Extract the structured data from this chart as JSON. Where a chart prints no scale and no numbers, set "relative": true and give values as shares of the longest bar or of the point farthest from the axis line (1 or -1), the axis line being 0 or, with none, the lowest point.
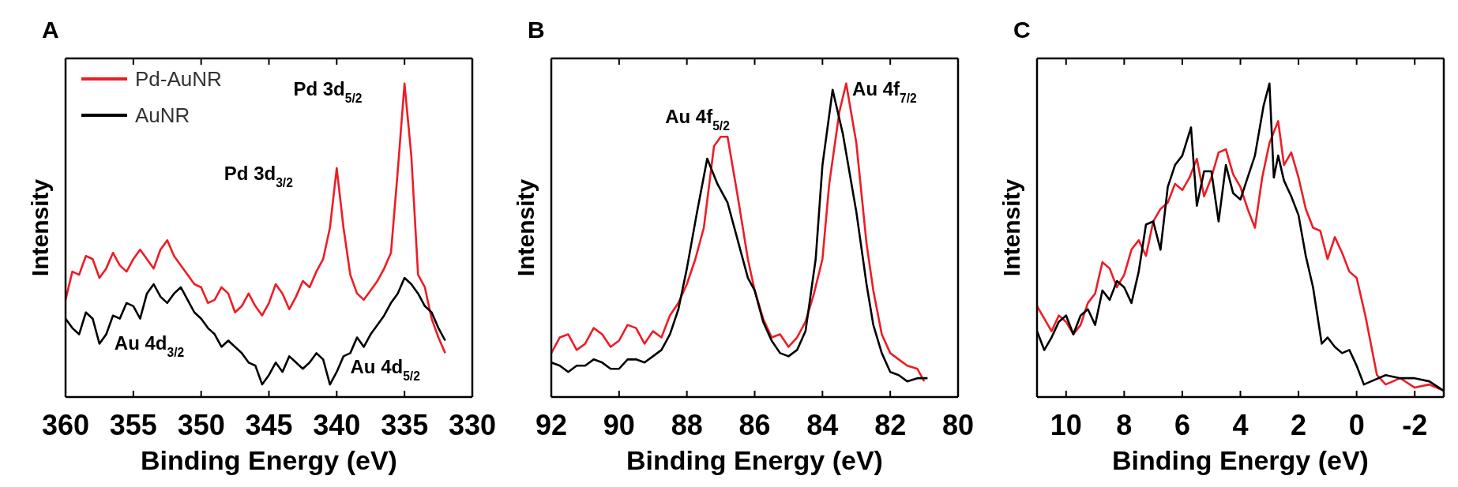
{
  "chart_data": [
    {
      "type": "line",
      "title": "A",
      "xlabel": "Binding Energy (eV)",
      "ylabel": "Intensity",
      "relative": true,
      "xlim": [
        360,
        330
      ],
      "xticks": [
        360,
        355,
        350,
        345,
        340,
        335,
        330
      ],
      "tick_labels": "x",
      "legend": "top left",
      "annotations": [
        "Pd 3d$_{5/2}$",
        "Pd 3d$_{3/2}$",
        "Au 4d$_{3/2}$",
        "Au 4d$_{5/2}$"
      ],
      "series": [
        {
          "name": "Pd-AuNR",
          "color": "#ee1c25",
          "x": [
            360,
            359.5,
            359,
            358.5,
            358,
            357.5,
            357,
            356.5,
            356,
            355.5,
            355,
            354.5,
            354,
            353.5,
            353,
            352.5,
            352,
            351.5,
            351,
            350.5,
            350,
            349.5,
            349,
            348.5,
            348,
            347.5,
            347,
            346.5,
            346,
            345.5,
            345,
            344.5,
            344,
            343.5,
            343,
            342.5,
            342,
            341.5,
            341,
            340.5,
            340,
            339.5,
            339,
            338.5,
            338,
            337.5,
            337,
            336.5,
            336,
            335.5,
            335,
            334.5,
            334,
            333.5,
            333,
            332.5,
            332
          ],
          "values": [
            0.31,
            0.4,
            0.39,
            0.45,
            0.44,
            0.38,
            0.41,
            0.46,
            0.42,
            0.4,
            0.44,
            0.47,
            0.44,
            0.41,
            0.47,
            0.5,
            0.45,
            0.42,
            0.39,
            0.36,
            0.35,
            0.3,
            0.31,
            0.35,
            0.33,
            0.27,
            0.29,
            0.33,
            0.29,
            0.26,
            0.3,
            0.36,
            0.33,
            0.28,
            0.32,
            0.37,
            0.35,
            0.4,
            0.44,
            0.54,
            0.73,
            0.54,
            0.39,
            0.33,
            0.31,
            0.34,
            0.37,
            0.41,
            0.46,
            0.72,
            1.0,
            0.77,
            0.39,
            0.35,
            0.25,
            0.19,
            0.14
          ]
        },
        {
          "name": "AuNR",
          "color": "#000000",
          "x": [
            360,
            359.5,
            359,
            358.5,
            358,
            357.5,
            357,
            356.5,
            356,
            355.5,
            355,
            354.5,
            354,
            353.5,
            353,
            352.5,
            352,
            351.5,
            351,
            350.5,
            350,
            349.5,
            349,
            348.5,
            348,
            347.5,
            347,
            346.5,
            346,
            345.5,
            345,
            344.5,
            344,
            343.5,
            343,
            342.5,
            342,
            341.5,
            341,
            340.5,
            340,
            339.5,
            339,
            338.5,
            338,
            337.5,
            337,
            336.5,
            336,
            335.5,
            335,
            334.5,
            334,
            333.5,
            333,
            332.5,
            332
          ],
          "values": [
            0.25,
            0.22,
            0.2,
            0.27,
            0.25,
            0.17,
            0.2,
            0.26,
            0.25,
            0.3,
            0.29,
            0.25,
            0.33,
            0.36,
            0.32,
            0.3,
            0.33,
            0.35,
            0.31,
            0.27,
            0.25,
            0.22,
            0.2,
            0.16,
            0.18,
            0.16,
            0.14,
            0.11,
            0.1,
            0.04,
            0.07,
            0.11,
            0.08,
            0.13,
            0.11,
            0.09,
            0.11,
            0.14,
            0.12,
            0.04,
            0.08,
            0.13,
            0.14,
            0.19,
            0.16,
            0.2,
            0.23,
            0.26,
            0.3,
            0.33,
            0.38,
            0.36,
            0.33,
            0.29,
            0.27,
            0.22,
            0.18
          ]
        }
      ]
    },
    {
      "type": "line",
      "title": "B",
      "xlabel": "Binding Energy (eV)",
      "ylabel": "Intensity",
      "relative": true,
      "xlim": [
        92,
        80
      ],
      "xticks": [
        92,
        90,
        88,
        86,
        84,
        82,
        80
      ],
      "tick_labels": "x",
      "annotations": [
        "Au 4f$_{5/2}$",
        "Au 4f$_{7/2}$"
      ],
      "series": [
        {
          "color": "#ee1c25",
          "x": [
            92,
            91.75,
            91.5,
            91.25,
            91,
            90.75,
            90.5,
            90.25,
            90,
            89.75,
            89.5,
            89.25,
            89,
            88.75,
            88.5,
            88.25,
            88,
            87.75,
            87.5,
            87.2,
            87,
            86.8,
            86.5,
            86.2,
            86,
            85.75,
            85.5,
            85.25,
            85,
            84.75,
            84.5,
            84.25,
            84,
            83.8,
            83.5,
            83.3,
            83,
            82.7,
            82.5,
            82.25,
            82,
            81.75,
            81.5,
            81.2,
            81
          ],
          "values": [
            0.14,
            0.19,
            0.2,
            0.15,
            0.17,
            0.22,
            0.2,
            0.16,
            0.18,
            0.23,
            0.22,
            0.17,
            0.21,
            0.19,
            0.26,
            0.3,
            0.36,
            0.44,
            0.54,
            0.8,
            0.83,
            0.83,
            0.64,
            0.44,
            0.34,
            0.25,
            0.19,
            0.2,
            0.16,
            0.19,
            0.24,
            0.33,
            0.44,
            0.68,
            0.91,
            1.0,
            0.81,
            0.49,
            0.34,
            0.2,
            0.14,
            0.12,
            0.1,
            0.09,
            0.05
          ]
        },
        {
          "color": "#000000",
          "x": [
            92,
            91.75,
            91.5,
            91.25,
            91,
            90.75,
            90.5,
            90.25,
            90,
            89.75,
            89.5,
            89.25,
            89,
            88.75,
            88.5,
            88.25,
            88,
            87.7,
            87.4,
            87.1,
            86.8,
            86.5,
            86.2,
            86,
            85.75,
            85.5,
            85.25,
            85,
            84.75,
            84.5,
            84.2,
            84,
            83.7,
            83.4,
            83,
            82.7,
            82.5,
            82.25,
            82,
            81.75,
            81.5,
            81.2,
            80.9
          ],
          "values": [
            0.11,
            0.1,
            0.08,
            0.1,
            0.1,
            0.12,
            0.11,
            0.09,
            0.09,
            0.12,
            0.12,
            0.11,
            0.13,
            0.15,
            0.2,
            0.28,
            0.41,
            0.59,
            0.76,
            0.68,
            0.62,
            0.5,
            0.38,
            0.34,
            0.24,
            0.18,
            0.14,
            0.13,
            0.15,
            0.21,
            0.44,
            0.74,
            0.98,
            0.84,
            0.59,
            0.36,
            0.23,
            0.14,
            0.08,
            0.07,
            0.05,
            0.06,
            0.06
          ]
        }
      ]
    },
    {
      "type": "line",
      "title": "C",
      "xlabel": "Binding Energy (eV)",
      "ylabel": "Intensity",
      "relative": true,
      "xlim": [
        11,
        -3
      ],
      "xticks": [
        10,
        8,
        6,
        4,
        2,
        0,
        -2
      ],
      "tick_labels": "x",
      "series": [
        {
          "color": "#ee1c25",
          "x": [
            11,
            10.75,
            10.5,
            10.25,
            10,
            9.75,
            9.5,
            9.25,
            9,
            8.75,
            8.5,
            8.25,
            8,
            7.75,
            7.5,
            7.25,
            7,
            6.75,
            6.5,
            6.25,
            6,
            5.75,
            5.5,
            5.25,
            5,
            4.75,
            4.5,
            4.25,
            4,
            3.75,
            3.5,
            3.25,
            3,
            2.7,
            2.5,
            2.25,
            2,
            1.75,
            1.5,
            1.25,
            1,
            0.75,
            0.5,
            0.25,
            0,
            -0.3,
            -0.7,
            -1,
            -1.5,
            -2,
            -2.5,
            -3
          ],
          "values": [
            0.29,
            0.25,
            0.21,
            0.26,
            0.24,
            0.2,
            0.23,
            0.3,
            0.33,
            0.43,
            0.41,
            0.35,
            0.39,
            0.47,
            0.5,
            0.45,
            0.56,
            0.6,
            0.62,
            0.68,
            0.66,
            0.7,
            0.76,
            0.64,
            0.7,
            0.78,
            0.79,
            0.71,
            0.67,
            0.6,
            0.54,
            0.7,
            0.81,
            0.88,
            0.74,
            0.78,
            0.7,
            0.6,
            0.54,
            0.53,
            0.44,
            0.51,
            0.46,
            0.4,
            0.38,
            0.26,
            0.07,
            0.04,
            0.06,
            0.03,
            0.04,
            0.02
          ]
        },
        {
          "color": "#000000",
          "x": [
            11,
            10.75,
            10.5,
            10.25,
            10,
            9.75,
            9.5,
            9.25,
            9,
            8.75,
            8.5,
            8.25,
            8,
            7.75,
            7.5,
            7.25,
            7,
            6.75,
            6.5,
            6.25,
            6,
            5.7,
            5.5,
            5.25,
            5,
            4.75,
            4.5,
            4.25,
            4,
            3.75,
            3.5,
            3.2,
            3,
            2.85,
            2.7,
            2.5,
            2.25,
            2,
            1.75,
            1.5,
            1.2,
            1,
            0.75,
            0.5,
            0.25,
            0,
            -0.25,
            -0.5,
            -1,
            -1.5,
            -2,
            -2.5,
            -3
          ],
          "values": [
            0.21,
            0.15,
            0.19,
            0.24,
            0.26,
            0.2,
            0.26,
            0.28,
            0.23,
            0.34,
            0.31,
            0.37,
            0.35,
            0.3,
            0.4,
            0.55,
            0.56,
            0.47,
            0.67,
            0.74,
            0.77,
            0.86,
            0.61,
            0.72,
            0.72,
            0.56,
            0.74,
            0.65,
            0.63,
            0.7,
            0.77,
            0.93,
            1.0,
            0.7,
            0.77,
            0.69,
            0.64,
            0.58,
            0.45,
            0.35,
            0.17,
            0.19,
            0.16,
            0.14,
            0.15,
            0.1,
            0.04,
            0.05,
            0.07,
            0.06,
            0.06,
            0.05,
            0.02
          ]
        }
      ]
    }
  ]
}
